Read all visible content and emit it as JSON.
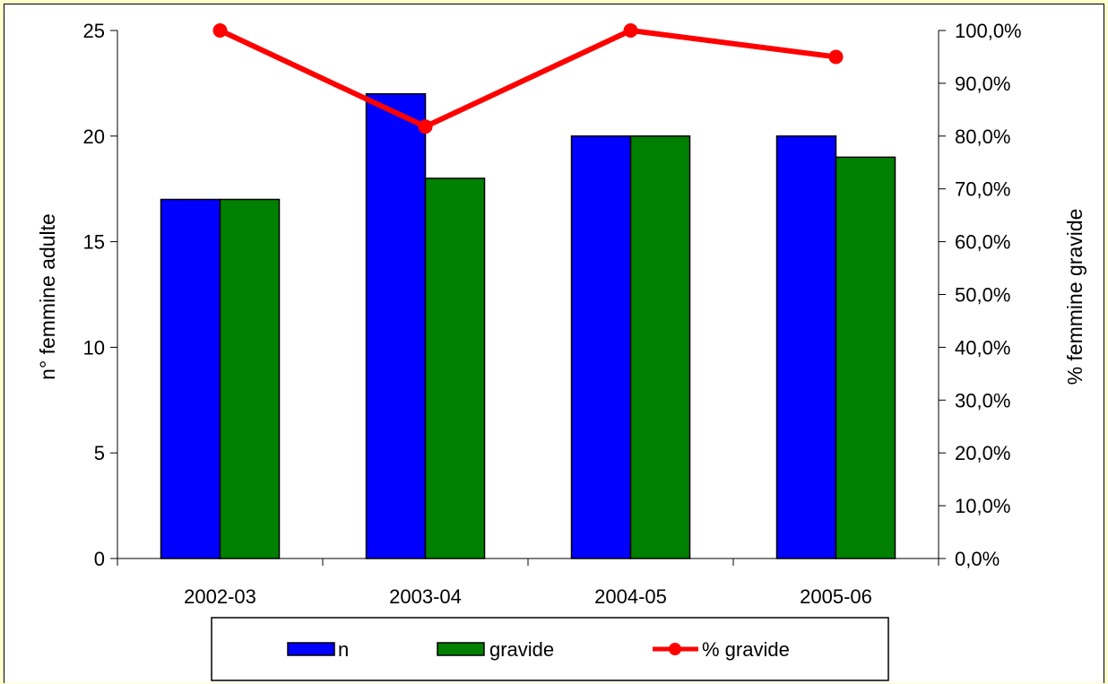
{
  "chart_data": {
    "type": "bar",
    "categories": [
      "2002-03",
      "2003-04",
      "2004-05",
      "2005-06"
    ],
    "series": [
      {
        "name": "n",
        "type": "bar",
        "axis": "left",
        "color": "#0000ff",
        "values": [
          17,
          22,
          20,
          20
        ]
      },
      {
        "name": "gravide",
        "type": "bar",
        "axis": "left",
        "color": "#008000",
        "values": [
          17,
          18,
          20,
          19
        ]
      },
      {
        "name": "% gravide",
        "type": "line",
        "axis": "right",
        "color": "#ff0000",
        "values": [
          100.0,
          81.8,
          100.0,
          95.0
        ]
      }
    ],
    "ylabel": "n° femmine adulte",
    "y2label": "% femmine gravide",
    "ylim": [
      0,
      25
    ],
    "y2lim": [
      0,
      100
    ],
    "y_ticks": [
      "0",
      "5",
      "10",
      "15",
      "20",
      "25"
    ],
    "y2_ticks": [
      "0,0%",
      "10,0%",
      "20,0%",
      "30,0%",
      "40,0%",
      "50,0%",
      "60,0%",
      "70,0%",
      "80,0%",
      "90,0%",
      "100,0%"
    ],
    "grid": false,
    "legend_position": "bottom"
  },
  "page_background": "#ffffcc"
}
